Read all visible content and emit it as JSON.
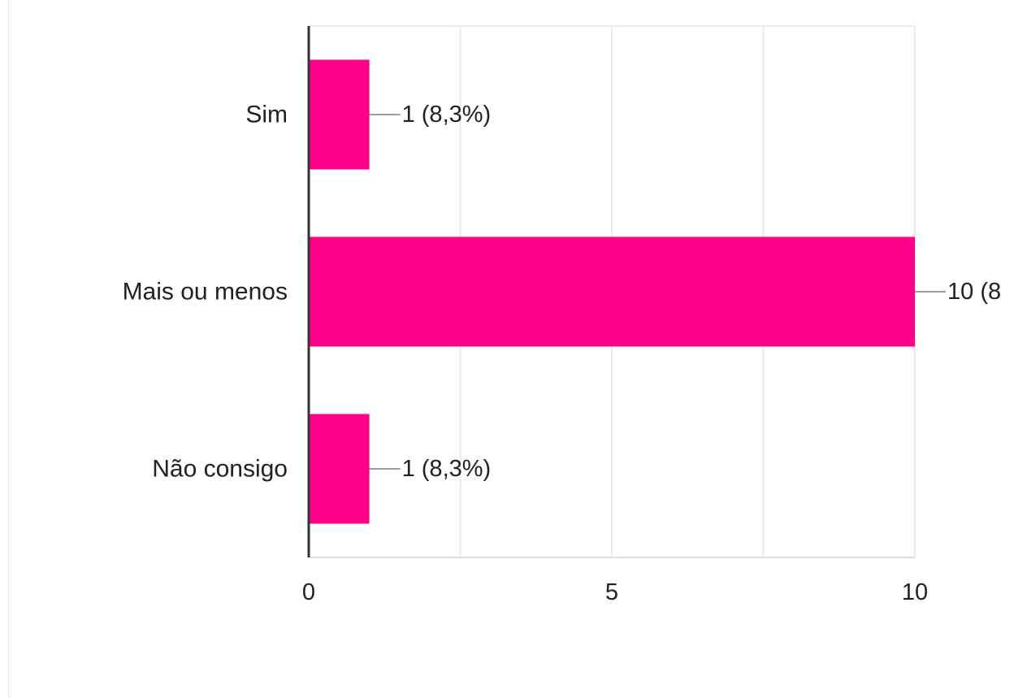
{
  "chart_data": {
    "type": "bar",
    "orientation": "horizontal",
    "categories": [
      "Sim",
      "Mais ou menos",
      "Não consigo"
    ],
    "values": [
      1,
      10,
      1
    ],
    "data_labels": [
      "1 (8,3%)",
      "10 (8",
      "1 (8,3%)"
    ],
    "xlim": [
      0,
      10
    ],
    "xticks": [
      0,
      5,
      10
    ],
    "xtick_labels": [
      "0",
      "5",
      "10"
    ],
    "grid": true,
    "bar_color": "#ff0088",
    "axis_color": "#333333",
    "grid_color": "#ebebeb",
    "leader_color": "#9e9e9e"
  }
}
